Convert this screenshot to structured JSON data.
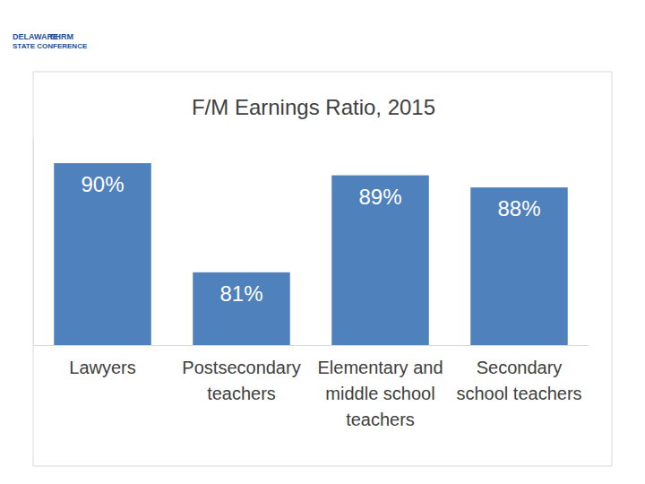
{
  "chart_data": {
    "type": "bar",
    "title": "F/M Earnings Ratio, 2015",
    "categories": [
      "Lawyers",
      "Postsecondary teachers",
      "Elementary and middle school teachers",
      "Secondary school teachers"
    ],
    "values": [
      90,
      81,
      89,
      88
    ],
    "value_labels": [
      "90%",
      "81%",
      "89%",
      "88%"
    ],
    "data_labels": true,
    "color": "#4f81bd",
    "ylim": [
      75,
      92
    ],
    "tick_labels": "x",
    "grid": false,
    "annotations": [
      "DELAWARE",
      "SHRM",
      "STATE CONFERENCE"
    ]
  }
}
